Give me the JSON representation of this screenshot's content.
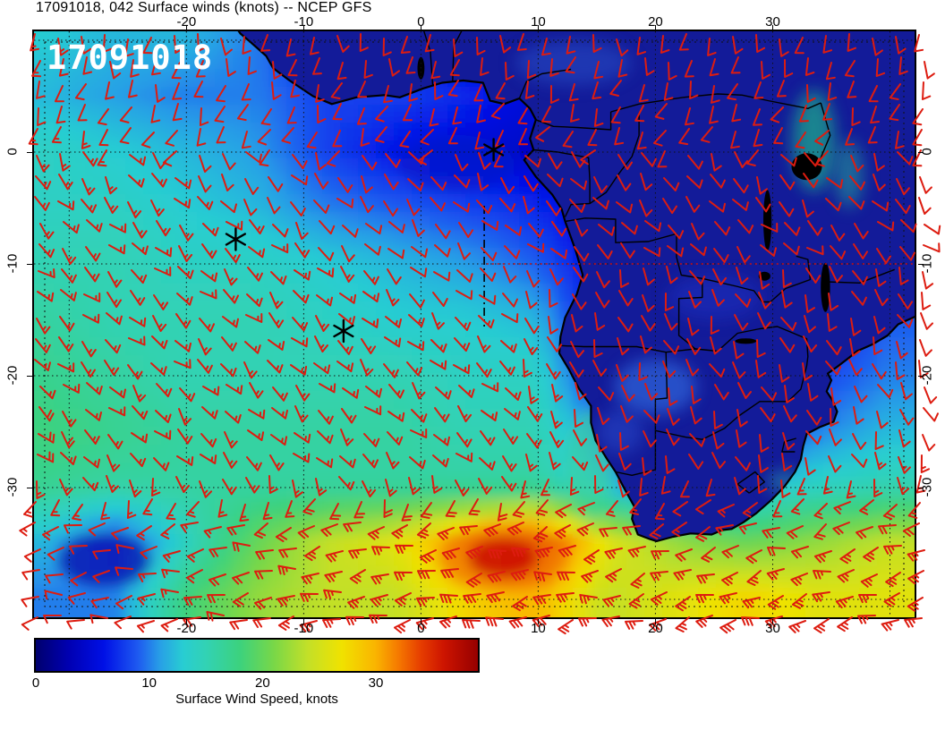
{
  "title": "17091018, 042 Surface winds (knots) -- NCEP GFS",
  "map_label": "17091018",
  "axes": {
    "lon_ticks": [
      -20,
      -10,
      0,
      10,
      20,
      30
    ],
    "lat_ticks": [
      0,
      -10,
      -20,
      -30
    ],
    "lon_min": -33,
    "lon_max": 42.1,
    "lat_min": -41.6,
    "lat_max": 10.8
  },
  "colorbar": {
    "label": "Surface Wind Speed, knots",
    "ticks": [
      0,
      10,
      20,
      30
    ],
    "vmin": 0,
    "vmax": 39,
    "stops": [
      [
        0,
        "#00006e"
      ],
      [
        3,
        "#0000b4"
      ],
      [
        6,
        "#0010e6"
      ],
      [
        9,
        "#1e5af0"
      ],
      [
        11,
        "#28a0e6"
      ],
      [
        13,
        "#28cdd2"
      ],
      [
        15,
        "#32d2b4"
      ],
      [
        18,
        "#3cd27d"
      ],
      [
        21,
        "#78d748"
      ],
      [
        24,
        "#c3e028"
      ],
      [
        27,
        "#f0e200"
      ],
      [
        30,
        "#fab400"
      ],
      [
        32,
        "#f57800"
      ],
      [
        34,
        "#e63c00"
      ],
      [
        36,
        "#cd1400"
      ],
      [
        39,
        "#960000"
      ]
    ]
  },
  "colors": {
    "land_fill": "#131b99",
    "coast": "#000000",
    "border": "#000000",
    "barb": "#dd1c10",
    "graticule": "#111111",
    "marker": "#000000",
    "map_label_color": "#ffffff"
  },
  "chart_data": {
    "type": "heatmap",
    "title": "17091018, 042 Surface winds (knots) -- NCEP GFS",
    "model": "NCEP GFS",
    "run_label": "17091018",
    "forecast_hour": "042",
    "variable": "Surface winds",
    "units": "knots",
    "region": "South Atlantic and southern Africa",
    "lon_ticks": [
      -20,
      -10,
      0,
      10,
      20,
      30
    ],
    "lat_ticks": [
      0,
      -10,
      -20,
      -30
    ],
    "colorbar_label": "Surface Wind Speed, knots",
    "colorbar_ticks": [
      0,
      10,
      20,
      30
    ],
    "legend_position": "bottom",
    "grid": {
      "lons": [
        -32,
        -26,
        -20,
        -14,
        -8,
        -2,
        4,
        10,
        16,
        22,
        28,
        34,
        40
      ],
      "lats": [
        10,
        5,
        0,
        -5,
        -10,
        -15,
        -20,
        -25,
        -30,
        -35,
        -40
      ],
      "speed_knots": [
        [
          13,
          12,
          12,
          10,
          6,
          5,
          5,
          5,
          5,
          5,
          6,
          6,
          5
        ],
        [
          12,
          11,
          10,
          10,
          8,
          8,
          7,
          5,
          5,
          5,
          5,
          10,
          8
        ],
        [
          14,
          13,
          12,
          11,
          8,
          6,
          5,
          4,
          4,
          4,
          4,
          12,
          10
        ],
        [
          14,
          14,
          13,
          12,
          10,
          9,
          8,
          7,
          4,
          4,
          4,
          9,
          7
        ],
        [
          15,
          15,
          14,
          14,
          13,
          12,
          11,
          9,
          5,
          4,
          4,
          5,
          8
        ],
        [
          16,
          15,
          15,
          15,
          14,
          13,
          13,
          12,
          5,
          5,
          5,
          6,
          9
        ],
        [
          17,
          16,
          15,
          15,
          15,
          15,
          14,
          14,
          6,
          9,
          5,
          8,
          10
        ],
        [
          18,
          17,
          16,
          16,
          16,
          16,
          15,
          15,
          10,
          6,
          6,
          10,
          12
        ],
        [
          17,
          16,
          16,
          16,
          16,
          16,
          16,
          16,
          12,
          8,
          12,
          14,
          15
        ],
        [
          12,
          8,
          14,
          20,
          24,
          26,
          32,
          36,
          26,
          22,
          20,
          22,
          24
        ],
        [
          10,
          10,
          18,
          22,
          24,
          24,
          28,
          30,
          24,
          26,
          28,
          26,
          26
        ]
      ]
    },
    "markers": [
      {
        "type": "asterisk",
        "lon": 6.2,
        "lat": 0.2
      },
      {
        "type": "asterisk",
        "lon": -15.8,
        "lat": -7.8
      },
      {
        "type": "asterisk",
        "lon": -6.6,
        "lat": -16.0
      }
    ],
    "annotation_lines": [
      {
        "color": "#cc1010",
        "style": "dotted",
        "from": {
          "lon": 5.6,
          "lat": -10
        },
        "to": {
          "lon": 42,
          "lat": -10
        }
      },
      {
        "color": "#000000",
        "style": "dashdot",
        "from": {
          "lon": 5.4,
          "lat": -4.8
        },
        "to": {
          "lon": 5.4,
          "lat": -15.6
        }
      }
    ],
    "wind_barbs": {
      "color": "#dd1c10",
      "note": "red wind barbs on regular grid over whole domain"
    }
  }
}
